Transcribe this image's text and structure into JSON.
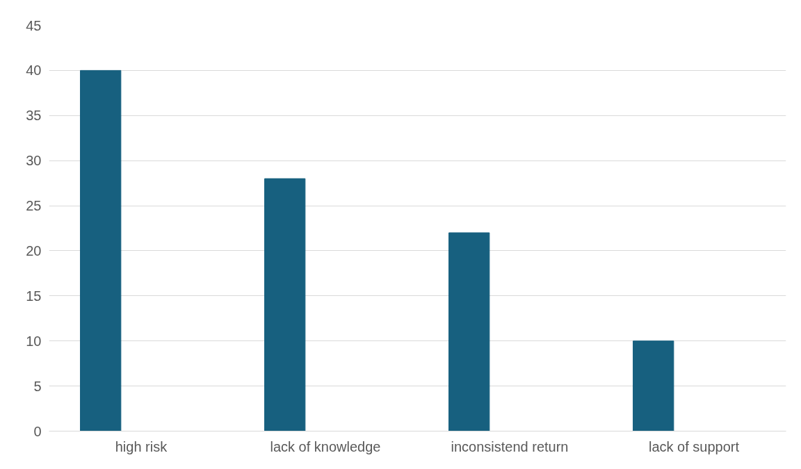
{
  "chart_data": {
    "type": "bar",
    "categories": [
      "high risk",
      "lack of knowledge",
      "inconsistend return",
      "lack of support"
    ],
    "values": [
      40,
      28,
      22,
      10
    ],
    "color": "#17607f",
    "ylim": [
      0,
      45
    ],
    "yticks": [
      0,
      5,
      10,
      15,
      20,
      25,
      30,
      35,
      40,
      45
    ],
    "grid": "y"
  }
}
